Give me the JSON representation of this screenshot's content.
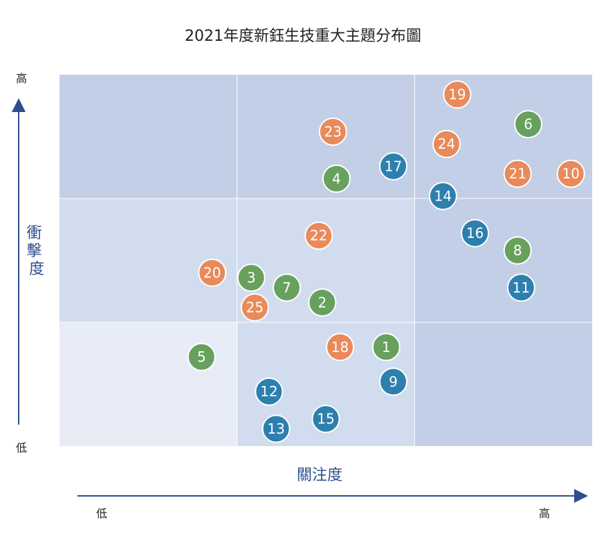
{
  "chart_data": {
    "type": "scatter",
    "title": "2021年度新鈺生技重大主題分布圖",
    "xlabel": "關注度",
    "ylabel": "衝擊度",
    "x_ticks": {
      "low": "低",
      "high": "高"
    },
    "y_ticks": {
      "low": "低",
      "high": "高"
    },
    "xlim": [
      0,
      3
    ],
    "ylim": [
      0,
      3
    ],
    "grid": true,
    "quadrant_colors": [
      [
        "#c3cfe6",
        "#c3cfe6",
        "#c3cfe6"
      ],
      [
        "#d1dcef",
        "#d1dcef",
        "#c3cfe6"
      ],
      [
        "#e7ecf7",
        "#d1dcef",
        "#c3cfe6"
      ]
    ],
    "category_colors": {
      "orange": "#e98a5a",
      "green": "#68a15d",
      "blue": "#2d7fae"
    },
    "points": [
      {
        "id": "1",
        "x": 1.84,
        "y": 0.8,
        "color": "green"
      },
      {
        "id": "2",
        "x": 1.48,
        "y": 1.16,
        "color": "green"
      },
      {
        "id": "3",
        "x": 1.08,
        "y": 1.36,
        "color": "green"
      },
      {
        "id": "4",
        "x": 1.56,
        "y": 2.16,
        "color": "green"
      },
      {
        "id": "5",
        "x": 0.8,
        "y": 0.72,
        "color": "green"
      },
      {
        "id": "6",
        "x": 2.64,
        "y": 2.6,
        "color": "green"
      },
      {
        "id": "7",
        "x": 1.28,
        "y": 1.28,
        "color": "green"
      },
      {
        "id": "8",
        "x": 2.58,
        "y": 1.58,
        "color": "green"
      },
      {
        "id": "9",
        "x": 1.88,
        "y": 0.52,
        "color": "blue"
      },
      {
        "id": "10",
        "x": 2.88,
        "y": 2.2,
        "color": "orange"
      },
      {
        "id": "11",
        "x": 2.6,
        "y": 1.28,
        "color": "blue"
      },
      {
        "id": "12",
        "x": 1.18,
        "y": 0.44,
        "color": "blue"
      },
      {
        "id": "13",
        "x": 1.22,
        "y": 0.14,
        "color": "blue"
      },
      {
        "id": "14",
        "x": 2.16,
        "y": 2.02,
        "color": "blue"
      },
      {
        "id": "15",
        "x": 1.5,
        "y": 0.22,
        "color": "blue"
      },
      {
        "id": "16",
        "x": 2.34,
        "y": 1.72,
        "color": "blue"
      },
      {
        "id": "17",
        "x": 1.88,
        "y": 2.26,
        "color": "blue"
      },
      {
        "id": "18",
        "x": 1.58,
        "y": 0.8,
        "color": "orange"
      },
      {
        "id": "19",
        "x": 2.24,
        "y": 2.84,
        "color": "orange"
      },
      {
        "id": "20",
        "x": 0.86,
        "y": 1.4,
        "color": "orange"
      },
      {
        "id": "21",
        "x": 2.58,
        "y": 2.2,
        "color": "orange"
      },
      {
        "id": "22",
        "x": 1.46,
        "y": 1.7,
        "color": "orange"
      },
      {
        "id": "23",
        "x": 1.54,
        "y": 2.54,
        "color": "orange"
      },
      {
        "id": "24",
        "x": 2.18,
        "y": 2.44,
        "color": "orange"
      },
      {
        "id": "25",
        "x": 1.1,
        "y": 1.12,
        "color": "orange"
      }
    ]
  }
}
